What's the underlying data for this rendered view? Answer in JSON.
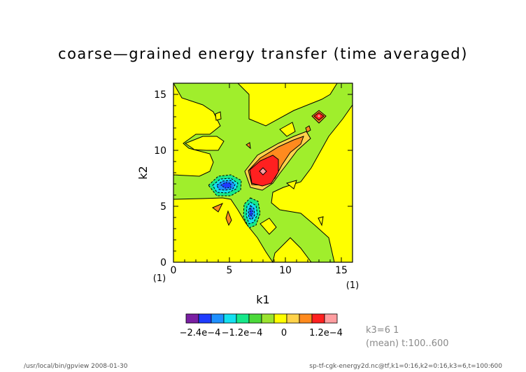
{
  "chart_data": {
    "type": "heatmap",
    "title": "coarse—grained energy transfer (time averaged)",
    "xlabel": "k1",
    "ylabel": "k2",
    "xlim": [
      0,
      16
    ],
    "ylim": [
      0,
      16
    ],
    "x_ticks": [
      "0",
      "5",
      "10",
      "15"
    ],
    "y_ticks": [
      "0",
      "5",
      "10",
      "15"
    ],
    "x_index_label": "(1)",
    "y_index_label": "(1)",
    "x_end_label": "(1)",
    "colorbar": {
      "labels": [
        "−2.4e−4",
        "−1.2e−4",
        "0",
        "1.2e−4"
      ],
      "colors": [
        "#7a1fa2",
        "#1f3cff",
        "#1e90ff",
        "#14e0f0",
        "#16e88a",
        "#4bd93a",
        "#9be32f",
        "#ffff00",
        "#ffd24a",
        "#ff8a1e",
        "#ff2020",
        "#ff9da0"
      ]
    },
    "annotation_k3": "k3=6 1",
    "annotation_mean": "(mean) t:100..600",
    "features": [
      {
        "kind": "negative",
        "k1": 5,
        "k2": 7,
        "value": -0.00024
      },
      {
        "kind": "negative",
        "k1": 7,
        "k2": 4.5,
        "value": -0.00024
      },
      {
        "kind": "positive",
        "k1": 8,
        "k2": 8,
        "value": 0.00018
      },
      {
        "kind": "positive",
        "k1": 13,
        "k2": 13,
        "value": 0.00015
      }
    ]
  },
  "footer": {
    "left": "/usr/local/bin/gpview   2008-01-30",
    "right": "sp-tf-cgk-energy2d.nc@tf,k1=0:16,k2=0:16,k3=6,t=100:600"
  }
}
